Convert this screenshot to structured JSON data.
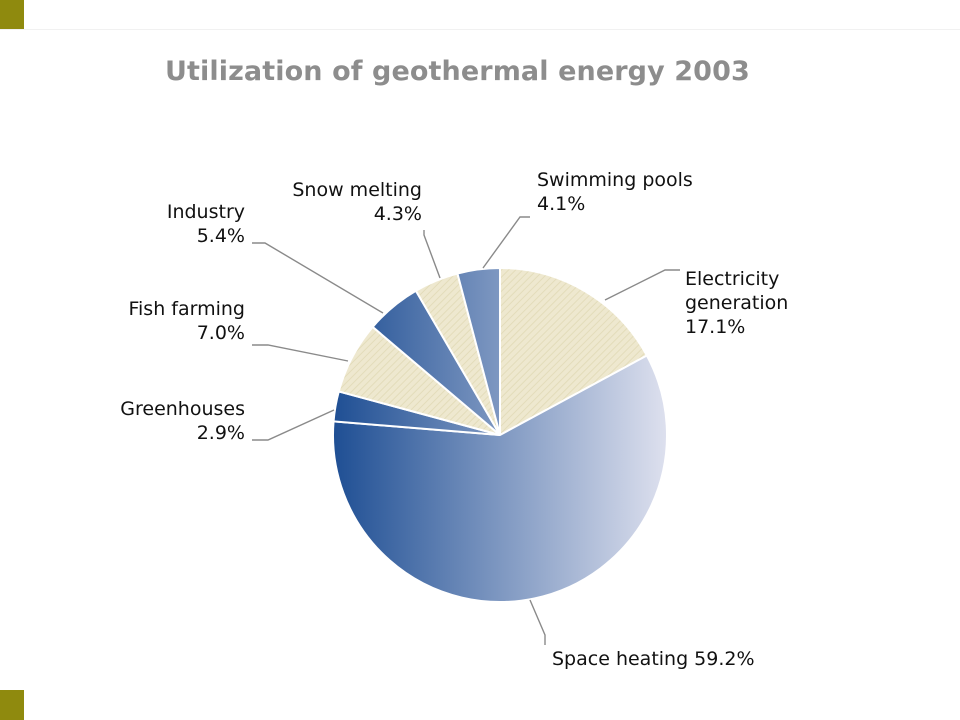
{
  "chart_data": {
    "type": "pie",
    "title": "Utilization of geothermal energy 2003",
    "slices": [
      {
        "label": "Electricity generation",
        "value": 17.1,
        "value_label": "17.1%",
        "label_lines": [
          "Electricity",
          "generation",
          "17.1%"
        ],
        "fill": "stripes-beige"
      },
      {
        "label": "Space heating",
        "value": 59.2,
        "value_label": "59.2%",
        "label_lines": [
          "Space heating 59.2%"
        ],
        "fill": "gradient-blue"
      },
      {
        "label": "Greenhouses",
        "value": 2.9,
        "value_label": "2.9%",
        "label_lines": [
          "Greenhouses",
          "2.9%"
        ],
        "fill": "gradient-blue"
      },
      {
        "label": "Fish farming",
        "value": 7.0,
        "value_label": "7.0%",
        "label_lines": [
          "Fish farming",
          "7.0%"
        ],
        "fill": "stripes-beige"
      },
      {
        "label": "Industry",
        "value": 5.4,
        "value_label": "5.4%",
        "label_lines": [
          "Industry",
          "5.4%"
        ],
        "fill": "gradient-blue"
      },
      {
        "label": "Snow melting",
        "value": 4.3,
        "value_label": "4.3%",
        "label_lines": [
          "Snow melting",
          "4.3%"
        ],
        "fill": "stripes-beige"
      },
      {
        "label": "Swimming pools",
        "value": 4.1,
        "value_label": "4.1%",
        "label_lines": [
          "Swimming pools",
          "4.1%"
        ],
        "fill": "gradient-blue"
      }
    ],
    "colors": {
      "blue_dark": "#1f4f94",
      "blue_light": "#dde0ee",
      "beige": "#eee8cf",
      "beige_stripe": "#e3dcba",
      "leader": "#8a8a8a",
      "title": "#8d8d8d",
      "accent_square": "#8f8a0e"
    }
  }
}
